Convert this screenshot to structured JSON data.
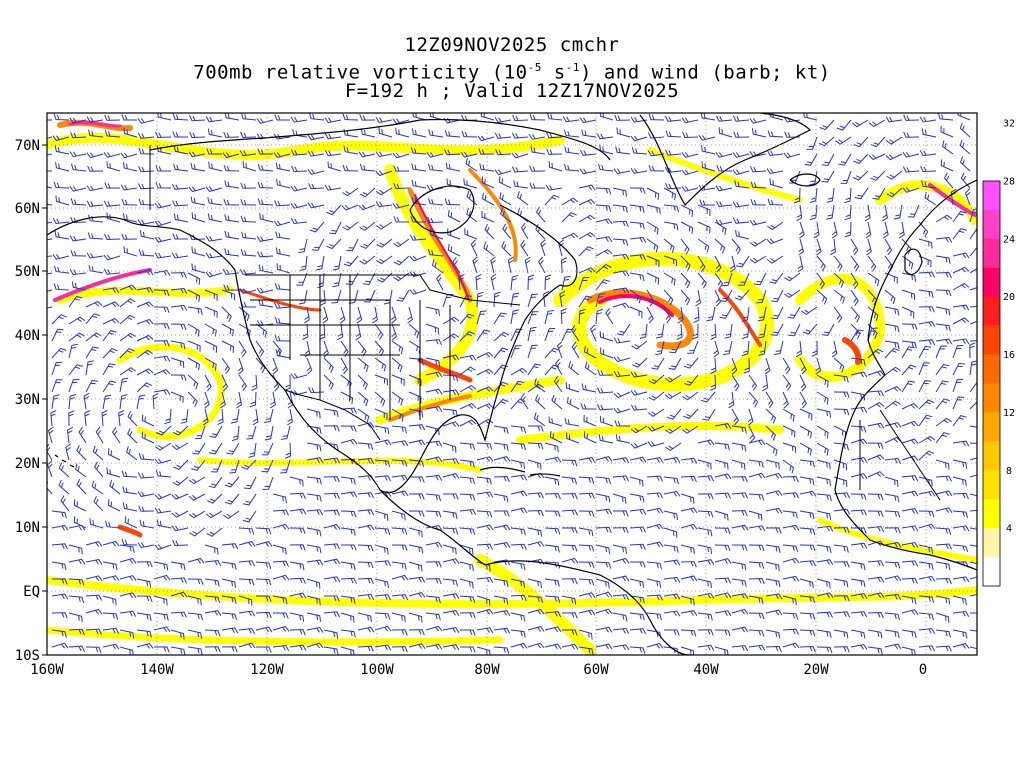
{
  "title": {
    "line1": "12Z09NOV2025 cmchr",
    "line2_prefix": "700mb relative vorticity (10",
    "line2_exp1": "-5",
    "line2_mid": " s",
    "line2_exp2": "-1",
    "line2_suffix": ") and wind (barb; kt)",
    "line3": "F=192 h ; Valid 12Z17NOV2025"
  },
  "axes": {
    "lat_labels": [
      "70N",
      "60N",
      "50N",
      "40N",
      "30N",
      "20N",
      "10N",
      "EQ",
      "10S"
    ],
    "lon_labels": [
      "160W",
      "140W",
      "120W",
      "100W",
      "80W",
      "60W",
      "40W",
      "20W",
      "0"
    ]
  },
  "colorbar": {
    "levels": [
      "4",
      "8",
      "12",
      "16",
      "20",
      "24",
      "28",
      "32"
    ],
    "colors": [
      "#ffffff",
      "#fff5a8",
      "#ffff00",
      "#ffe000",
      "#ffc800",
      "#ffa800",
      "#ff8800",
      "#ff6a00",
      "#ff4400",
      "#ff1e1e",
      "#ff0066",
      "#ff2a9a",
      "#ff40c8",
      "#ff50ff"
    ]
  },
  "map": {
    "land_color": "#000000",
    "barb_color": "#2233dd",
    "grid_color": "#888888"
  }
}
